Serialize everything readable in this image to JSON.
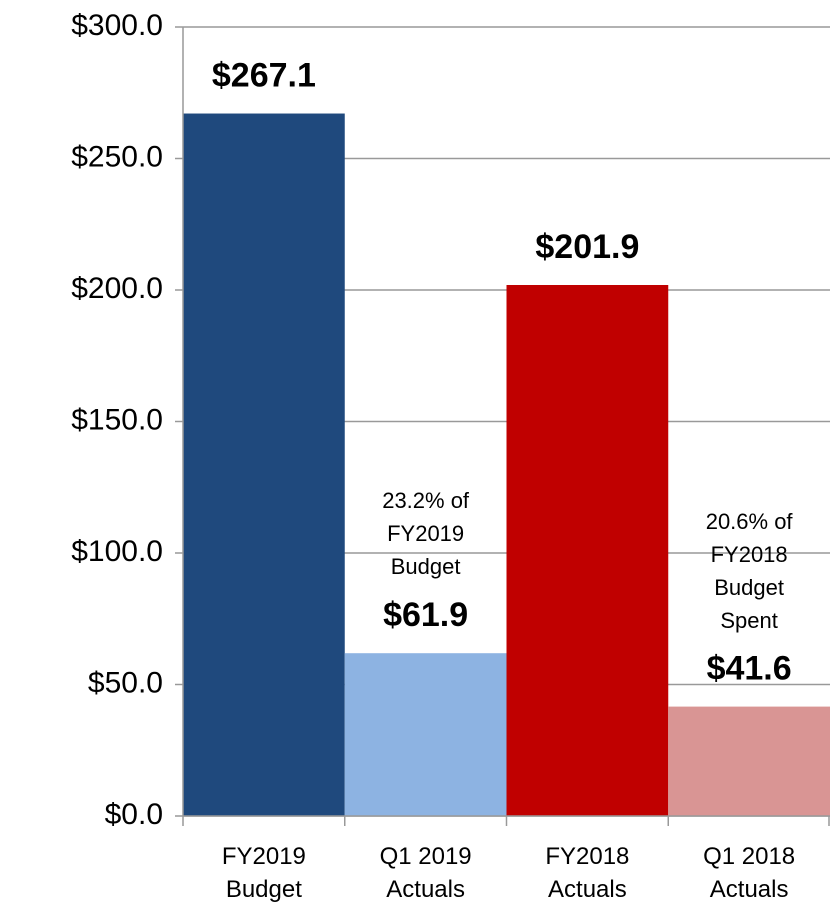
{
  "chart_data": {
    "type": "bar",
    "categories": [
      "FY2019 Budget",
      "Q1 2019 Actuals",
      "FY2018 Actuals",
      "Q1 2018 Actuals"
    ],
    "values": [
      267.1,
      61.9,
      201.9,
      41.6
    ],
    "value_labels": [
      "$267.1",
      "$61.9",
      "$201.9",
      "$41.6"
    ],
    "colors": [
      "#1f497d",
      "#8db3e2",
      "#c00000",
      "#d99594"
    ],
    "annotations": [
      {
        "category": "Q1 2019 Actuals",
        "text": "23.2% of FY2019 Budget"
      },
      {
        "category": "Q1 2018 Actuals",
        "text": "20.6% of FY2018 Budget Spent"
      }
    ],
    "ylim": [
      0,
      300
    ],
    "yticks": [
      {
        "value": 0,
        "label": "$0.0"
      },
      {
        "value": 50,
        "label": "$50.0"
      },
      {
        "value": 100,
        "label": "$100.0"
      },
      {
        "value": 150,
        "label": "$150.0"
      },
      {
        "value": 200,
        "label": "$200.0"
      },
      {
        "value": 250,
        "label": "$250.0"
      },
      {
        "value": 300,
        "label": "$300.0"
      }
    ],
    "grid": true
  }
}
